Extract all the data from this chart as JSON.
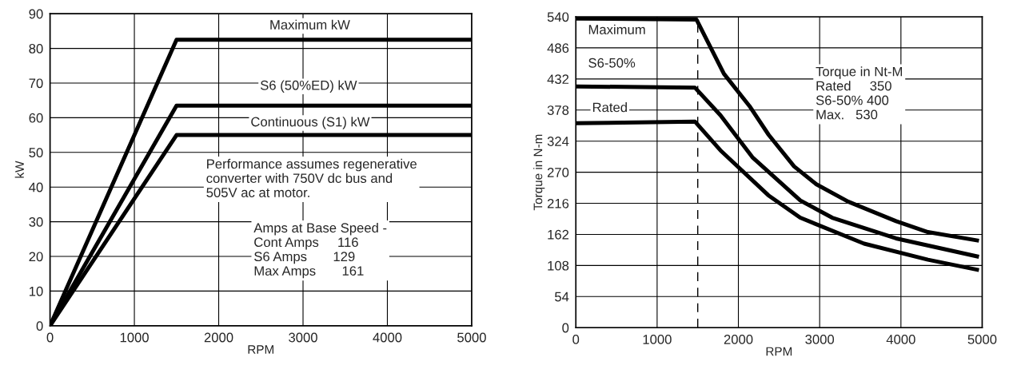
{
  "chart_data": [
    {
      "type": "line",
      "xlabel": "RPM",
      "ylabel": "kW",
      "xlim": [
        0,
        5000
      ],
      "ylim": [
        0,
        90
      ],
      "xticks": [
        0,
        1000,
        2000,
        3000,
        4000,
        5000
      ],
      "yticks": [
        0,
        10,
        20,
        30,
        40,
        50,
        60,
        70,
        80,
        90
      ],
      "grid": true,
      "series": [
        {
          "name": "Maximum kW",
          "color": "#000000",
          "x": [
            0,
            1500,
            5000
          ],
          "values": [
            0,
            82.5,
            82.5
          ]
        },
        {
          "name": "S6 (50%ED) kW",
          "color": "#000000",
          "x": [
            0,
            1500,
            5000
          ],
          "values": [
            0,
            63.5,
            63.5
          ]
        },
        {
          "name": "Continuous (S1) kW",
          "color": "#000000",
          "x": [
            0,
            1500,
            5000
          ],
          "values": [
            0,
            55,
            55
          ]
        }
      ],
      "annotations": [
        "Performance assumes regenerative\nconverter with 750V dc bus and\n505V ac at motor.",
        "Amps at Base Speed -\nCont Amps     116\nS6 Amps       129\nMax Amps       161"
      ]
    },
    {
      "type": "line",
      "xlabel": "RPM",
      "ylabel": "Torque in N-m",
      "xlim": [
        0,
        5000
      ],
      "ylim": [
        0,
        540
      ],
      "xticks": [
        0,
        1000,
        2000,
        3000,
        4000,
        5000
      ],
      "yticks": [
        0,
        54,
        108,
        162,
        216,
        270,
        324,
        378,
        432,
        486,
        540
      ],
      "grid": true,
      "series": [
        {
          "name": "Maximum",
          "color": "#000000",
          "x": [
            0,
            1485,
            1822,
            2136,
            2372,
            2686,
            2960,
            3350,
            3940,
            4332,
            4960
          ],
          "values": [
            537,
            535,
            441,
            385,
            335,
            280,
            249,
            219,
            185,
            166,
            151
          ]
        },
        {
          "name": "S6-50%",
          "color": "#000000",
          "x": [
            0,
            1465,
            1779,
            2172,
            2761,
            3154,
            3940,
            4960
          ],
          "values": [
            419,
            417,
            369,
            296,
            221,
            191,
            155,
            123
          ]
        },
        {
          "name": "Rated",
          "color": "#000000",
          "x": [
            0,
            1465,
            1779,
            2368,
            2761,
            3546,
            4332,
            4960
          ],
          "values": [
            355,
            358,
            308,
            230,
            191,
            146,
            118,
            100
          ]
        }
      ],
      "ref_lines": [
        {
          "axis": "x",
          "value": 1500,
          "color": "#000000",
          "line_style": "dashed"
        }
      ],
      "annotations": [
        "Torque in Nt-M\nRated     350\nS6-50% 400\nMax.   530"
      ]
    }
  ]
}
